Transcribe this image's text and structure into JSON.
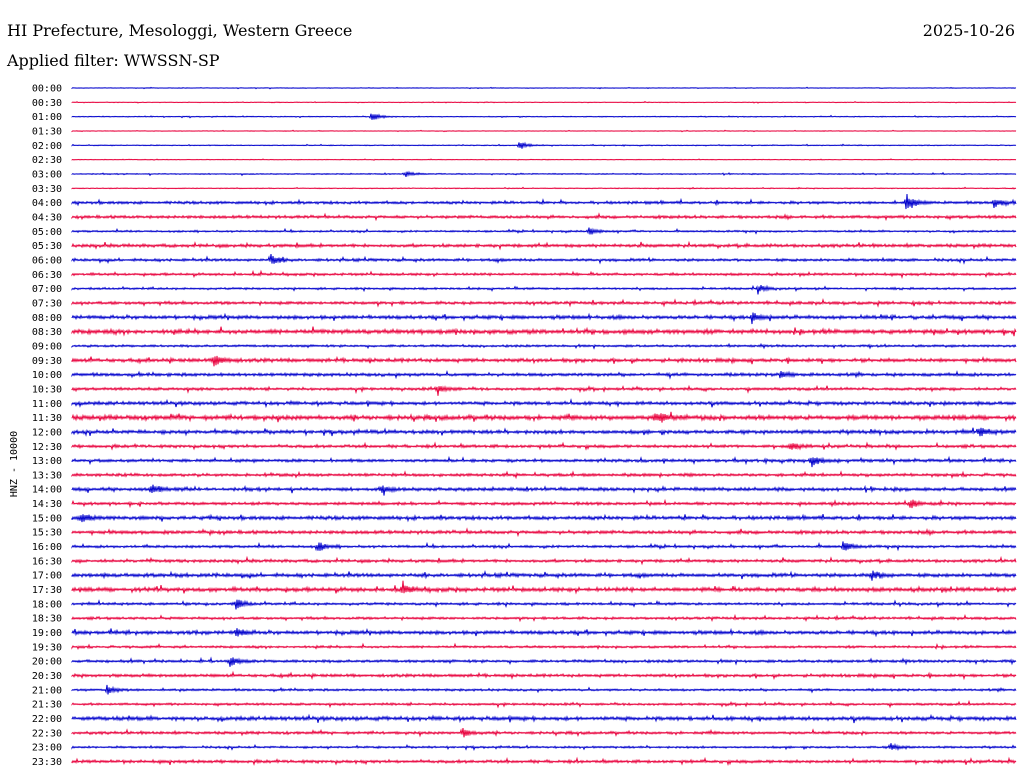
{
  "header": {
    "station": "HI Prefecture, Mesologgi, Western Greece",
    "date": "2025-10-26",
    "filter": "Applied filter: WWSSN-SP"
  },
  "chart_data": {
    "type": "line",
    "title": "HI Prefecture, Mesologgi, Western Greece",
    "subtitle": "Applied filter: WWSSN-SP",
    "date": "2025-10-26",
    "ylabel": "HNZ - 10000",
    "series_colors": [
      "#0000cc",
      "#e8003c"
    ],
    "rows": [
      "00:00",
      "00:30",
      "01:00",
      "01:30",
      "02:00",
      "02:30",
      "03:00",
      "03:30",
      "04:00",
      "04:30",
      "05:00",
      "05:30",
      "06:00",
      "06:30",
      "07:00",
      "07:30",
      "08:00",
      "08:30",
      "09:00",
      "09:30",
      "10:00",
      "10:30",
      "11:00",
      "11:30",
      "12:00",
      "12:30",
      "13:00",
      "13:30",
      "14:00",
      "14:30",
      "15:00",
      "15:30",
      "16:00",
      "16:30",
      "17:00",
      "17:30",
      "18:00",
      "18:30",
      "19:00",
      "19:30",
      "20:00",
      "20:30",
      "21:00",
      "21:30",
      "22:00",
      "22:30",
      "23:00",
      "23:30"
    ],
    "noise_level": [
      0.3,
      0.3,
      0.4,
      0.3,
      0.4,
      0.3,
      0.5,
      0.4,
      1.2,
      1.3,
      0.8,
      1.4,
      1.2,
      1.1,
      0.9,
      1.3,
      1.6,
      1.9,
      1.0,
      1.6,
      1.4,
      1.2,
      1.5,
      2.0,
      1.6,
      1.3,
      1.3,
      1.3,
      1.5,
      1.3,
      1.6,
      1.5,
      1.1,
      1.3,
      1.6,
      1.8,
      1.1,
      1.1,
      1.6,
      1.0,
      1.2,
      1.3,
      1.0,
      1.0,
      1.7,
      1.2,
      0.9,
      1.3
    ],
    "events": [
      {
        "row": "01:00",
        "minute": 9.5,
        "amp": 5
      },
      {
        "row": "02:00",
        "minute": 14.2,
        "amp": 4
      },
      {
        "row": "03:00",
        "minute": 10.6,
        "amp": 3
      },
      {
        "row": "04:00",
        "minute": 26.5,
        "amp": 9
      },
      {
        "row": "04:00",
        "minute": 29.3,
        "amp": 5
      },
      {
        "row": "05:00",
        "minute": 16.4,
        "amp": 4
      },
      {
        "row": "06:00",
        "minute": 6.3,
        "amp": 6
      },
      {
        "row": "07:00",
        "minute": 21.8,
        "amp": 4
      },
      {
        "row": "08:00",
        "minute": 21.6,
        "amp": 5
      },
      {
        "row": "09:30",
        "minute": 4.5,
        "amp": 7
      },
      {
        "row": "10:00",
        "minute": 22.5,
        "amp": 4
      },
      {
        "row": "10:30",
        "minute": 11.6,
        "amp": 5
      },
      {
        "row": "11:30",
        "minute": 18.7,
        "amp": 4
      },
      {
        "row": "11:30",
        "minute": 18.5,
        "amp": 4
      },
      {
        "row": "12:00",
        "minute": 28.8,
        "amp": 5
      },
      {
        "row": "12:30",
        "minute": 22.8,
        "amp": 4
      },
      {
        "row": "13:00",
        "minute": 23.5,
        "amp": 6
      },
      {
        "row": "14:00",
        "minute": 2.5,
        "amp": 5
      },
      {
        "row": "14:00",
        "minute": 9.8,
        "amp": 4
      },
      {
        "row": "14:30",
        "minute": 26.6,
        "amp": 5
      },
      {
        "row": "15:00",
        "minute": 0.3,
        "amp": 5
      },
      {
        "row": "16:00",
        "minute": 7.8,
        "amp": 5
      },
      {
        "row": "16:00",
        "minute": 24.5,
        "amp": 5
      },
      {
        "row": "17:00",
        "minute": 25.4,
        "amp": 6
      },
      {
        "row": "17:30",
        "minute": 10.5,
        "amp": 5
      },
      {
        "row": "18:00",
        "minute": 5.2,
        "amp": 6
      },
      {
        "row": "19:00",
        "minute": 5.2,
        "amp": 5
      },
      {
        "row": "20:00",
        "minute": 5.0,
        "amp": 6
      },
      {
        "row": "21:00",
        "minute": 1.1,
        "amp": 5
      },
      {
        "row": "22:30",
        "minute": 12.4,
        "amp": 5
      },
      {
        "row": "23:00",
        "minute": 26.0,
        "amp": 4
      }
    ]
  }
}
